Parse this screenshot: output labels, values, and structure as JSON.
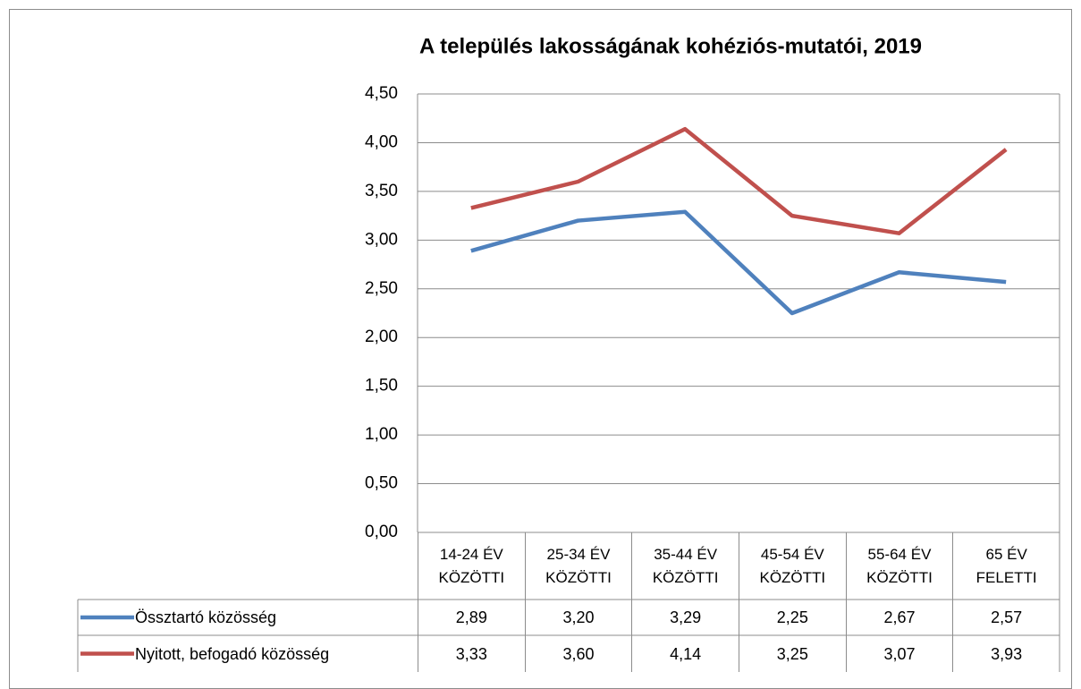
{
  "chart_data": {
    "type": "line",
    "title": "A település lakosságának kohéziós-mutatói, 2019",
    "categories": [
      "14-24 ÉV KÖZÖTTI",
      "25-34 ÉV KÖZÖTTI",
      "35-44 ÉV KÖZÖTTI",
      "45-54 ÉV KÖZÖTTI",
      "55-64 ÉV KÖZÖTTI",
      "65 ÉV FELETTI"
    ],
    "series": [
      {
        "name": "Össztartó közösség",
        "color": "#4f81bd",
        "values": [
          2.89,
          3.2,
          3.29,
          2.25,
          2.67,
          2.57
        ],
        "value_labels": [
          "2,89",
          "3,20",
          "3,29",
          "2,25",
          "2,67",
          "2,57"
        ]
      },
      {
        "name": "Nyitott, befogadó közösség",
        "color": "#c0504d",
        "values": [
          3.33,
          3.6,
          4.14,
          3.25,
          3.07,
          3.93
        ],
        "value_labels": [
          "3,33",
          "3,60",
          "4,14",
          "3,25",
          "3,07",
          "3,93"
        ]
      }
    ],
    "ylim": [
      0,
      4.5
    ],
    "yticks": [
      {
        "value": 0,
        "label": "0,00"
      },
      {
        "value": 0.5,
        "label": "0,50"
      },
      {
        "value": 1,
        "label": "1,00"
      },
      {
        "value": 1.5,
        "label": "1,50"
      },
      {
        "value": 2,
        "label": "2,00"
      },
      {
        "value": 2.5,
        "label": "2,50"
      },
      {
        "value": 3,
        "label": "3,00"
      },
      {
        "value": 3.5,
        "label": "3,50"
      },
      {
        "value": 4,
        "label": "4,00"
      },
      {
        "value": 4.5,
        "label": "4,50"
      }
    ],
    "grid": true
  }
}
